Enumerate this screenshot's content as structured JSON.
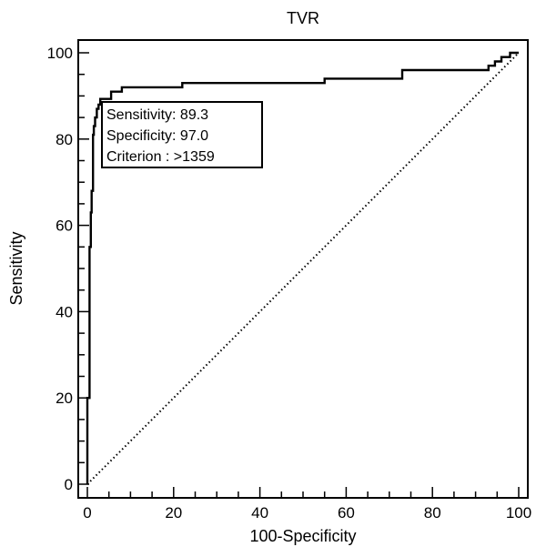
{
  "chart_data": {
    "type": "line",
    "title": "TVR",
    "xlabel": "100-Specificity",
    "ylabel": "Sensitivity",
    "xlim": [
      0,
      100
    ],
    "ylim": [
      0,
      100
    ],
    "xticks": [
      0,
      20,
      40,
      60,
      80,
      100
    ],
    "yticks": [
      0,
      20,
      40,
      60,
      80,
      100
    ],
    "grid": false,
    "series": [
      {
        "style": "solid",
        "color": "#000000",
        "x": [
          0,
          0,
          0.5,
          0.5,
          0.8,
          0.8,
          1.0,
          1.0,
          1.3,
          1.3,
          1.5,
          1.5,
          1.8,
          1.8,
          2.2,
          2.2,
          2.6,
          2.6,
          3.0,
          3.0,
          5.5,
          5.5,
          8.0,
          8.0,
          22.0,
          22.0,
          55.0,
          55.0,
          73.0,
          73.0,
          93.0,
          93.0,
          94.5,
          94.5,
          96.0,
          96.0,
          98.0,
          98.0,
          100
        ],
        "y": [
          0,
          20,
          20,
          55,
          55,
          63,
          63,
          68,
          68,
          81,
          81,
          83,
          83,
          85,
          85,
          87,
          87,
          88,
          88,
          89.3,
          89.3,
          91,
          91,
          92,
          92,
          93,
          93,
          94,
          94,
          96,
          96,
          97,
          97,
          98,
          98,
          99,
          99,
          100,
          100
        ]
      },
      {
        "style": "dotted",
        "color": "#000000",
        "x": [
          0,
          100
        ],
        "y": [
          0,
          100
        ]
      }
    ],
    "annotations": [
      "Sensitivity: 89.3",
      "Specificity: 97.0",
      "Criterion : >1359"
    ]
  }
}
